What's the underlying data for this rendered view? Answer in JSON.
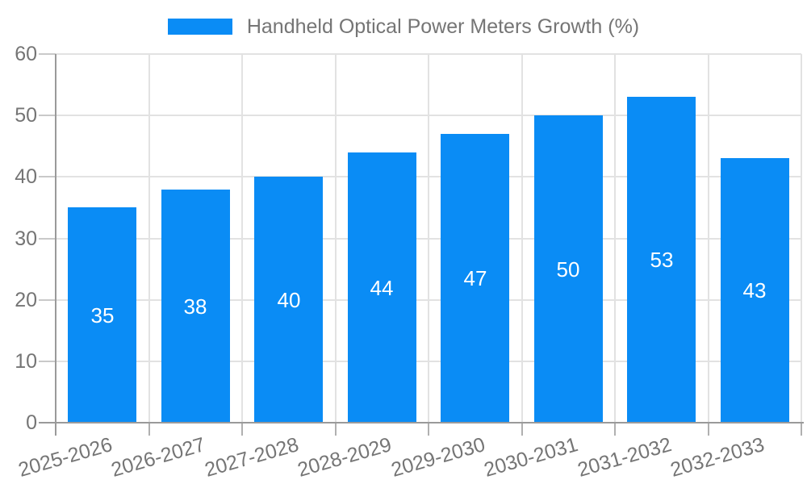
{
  "legend": {
    "label": "Handheld Optical Power Meters Growth (%)"
  },
  "chart_data": {
    "type": "bar",
    "title": "Handheld Optical Power Meters Growth (%)",
    "categories": [
      "2025-2026",
      "2026-2027",
      "2027-2028",
      "2028-2029",
      "2029-2030",
      "2030-2031",
      "2031-2032",
      "2032-2033"
    ],
    "values": [
      35,
      38,
      40,
      44,
      47,
      50,
      53,
      43
    ],
    "value_labels": [
      "35",
      "38",
      "40",
      "44",
      "47",
      "50",
      "53",
      "43"
    ],
    "ytick_labels": [
      "0",
      "10",
      "20",
      "30",
      "40",
      "50",
      "60"
    ],
    "yticks": [
      0,
      10,
      20,
      30,
      40,
      50,
      60
    ],
    "ylim": [
      0,
      60
    ],
    "xlabel": "",
    "ylabel": "",
    "grid": true,
    "legend_position": "top",
    "colors": {
      "bar": "#0a8cf5",
      "value_label": "#ffffff",
      "axis": "#9a9a9a",
      "grid": "#e2e2e2",
      "tick_y": "#c9c9c9",
      "tick_x": "#b0b0b0",
      "text": "#757575"
    }
  }
}
